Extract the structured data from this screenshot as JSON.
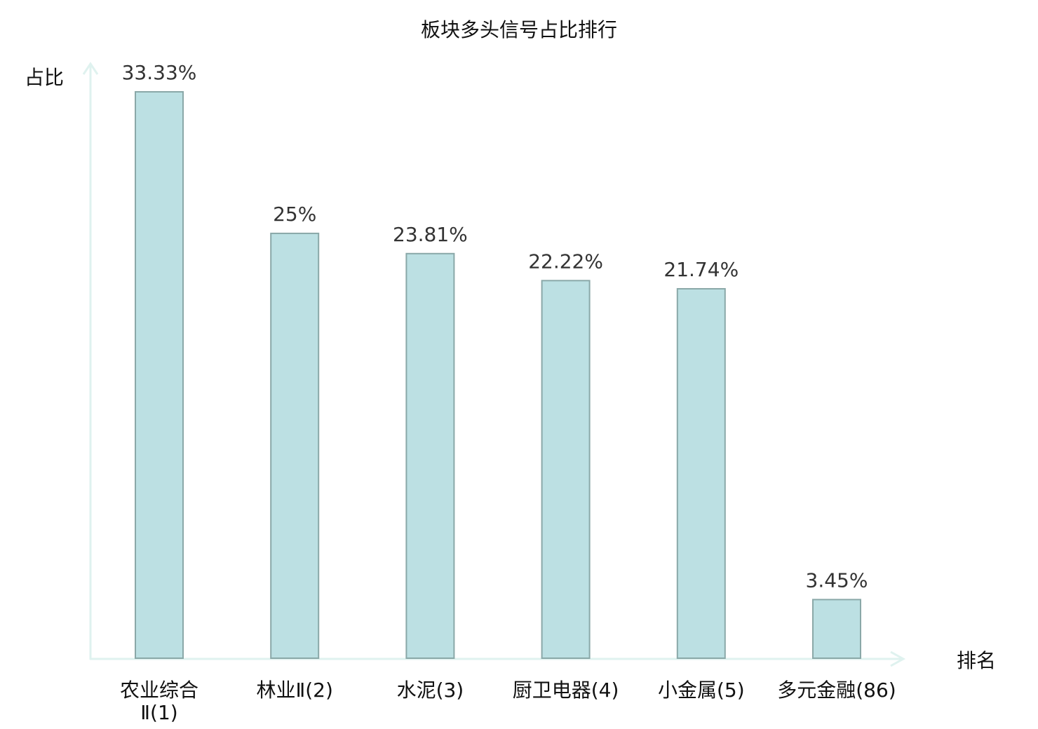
{
  "chart_data": {
    "type": "bar",
    "title": "板块多头信号占比排行",
    "ylabel": "占比",
    "xlabel": "排名",
    "categories": [
      "农业综合Ⅱ(1)",
      "林业Ⅱ(2)",
      "水泥(3)",
      "厨卫电器(4)",
      "小金属(5)",
      "多元金融(86)"
    ],
    "category_lines": [
      [
        "农业综合",
        "Ⅱ(1)"
      ],
      [
        "林业Ⅱ(2)"
      ],
      [
        "水泥(3)"
      ],
      [
        "厨卫电器(4)"
      ],
      [
        "小金属(5)"
      ],
      [
        "多元金融(86)"
      ]
    ],
    "values": [
      33.33,
      25,
      23.81,
      22.22,
      21.74,
      3.45
    ],
    "data_labels": [
      "33.33%",
      "25%",
      "23.81%",
      "22.22%",
      "21.74%",
      "3.45%"
    ],
    "ylim": [
      0,
      33.33
    ],
    "grid": false,
    "highlight_category_index": 5,
    "colors": {
      "bar_fill": "#bce0e3",
      "bar_stroke": "#8aa8a8",
      "axis": "#dff2ef",
      "highlight_label": "#e01010",
      "label": "#111111",
      "value_label": "#333333"
    }
  }
}
